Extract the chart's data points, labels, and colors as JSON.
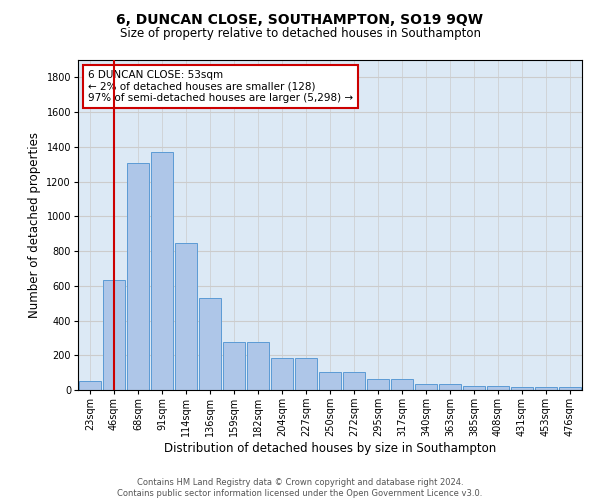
{
  "title1": "6, DUNCAN CLOSE, SOUTHAMPTON, SO19 9QW",
  "title2": "Size of property relative to detached houses in Southampton",
  "xlabel": "Distribution of detached houses by size in Southampton",
  "ylabel": "Number of detached properties",
  "categories": [
    "23sqm",
    "46sqm",
    "68sqm",
    "91sqm",
    "114sqm",
    "136sqm",
    "159sqm",
    "182sqm",
    "204sqm",
    "227sqm",
    "250sqm",
    "272sqm",
    "295sqm",
    "317sqm",
    "340sqm",
    "363sqm",
    "385sqm",
    "408sqm",
    "431sqm",
    "453sqm",
    "476sqm"
  ],
  "values": [
    50,
    635,
    1305,
    1370,
    845,
    530,
    275,
    275,
    185,
    185,
    103,
    103,
    62,
    62,
    37,
    37,
    25,
    25,
    15,
    15,
    15
  ],
  "bar_color": "#aec6e8",
  "bar_edge_color": "#5b9bd5",
  "vline_x": 1.0,
  "vline_color": "#cc0000",
  "annotation_text": "6 DUNCAN CLOSE: 53sqm\n← 2% of detached houses are smaller (128)\n97% of semi-detached houses are larger (5,298) →",
  "annotation_box_color": "#ffffff",
  "annotation_box_edge": "#cc0000",
  "ylim": [
    0,
    1900
  ],
  "yticks": [
    0,
    200,
    400,
    600,
    800,
    1000,
    1200,
    1400,
    1600,
    1800
  ],
  "grid_color": "#cccccc",
  "background_color": "#dce9f5",
  "footer1": "Contains HM Land Registry data © Crown copyright and database right 2024.",
  "footer2": "Contains public sector information licensed under the Open Government Licence v3.0.",
  "title1_fontsize": 10,
  "title2_fontsize": 8.5,
  "tick_fontsize": 7,
  "label_fontsize": 8.5,
  "footer_fontsize": 6
}
